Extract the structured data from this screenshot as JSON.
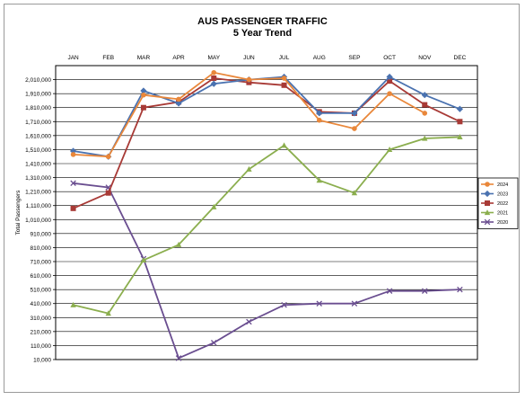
{
  "chart_data": {
    "type": "line",
    "title": "AUS PASSENGER TRAFFIC",
    "subtitle": "5 Year Trend",
    "ylabel": "Total Passengers",
    "xlabel": "",
    "categories": [
      "JAN",
      "FEB",
      "MAR",
      "APR",
      "MAY",
      "JUN",
      "JUL",
      "AUG",
      "SEP",
      "OCT",
      "NOV",
      "DEC"
    ],
    "ylim": [
      10000,
      2110000
    ],
    "yticks": [
      10000,
      110000,
      210000,
      310000,
      410000,
      510000,
      610000,
      710000,
      810000,
      910000,
      1010000,
      1110000,
      1210000,
      1310000,
      1410000,
      1510000,
      1610000,
      1710000,
      1810000,
      1910000,
      2010000
    ],
    "ytick_labels": [
      "10,000",
      "110,000",
      "210,000",
      "310,000",
      "410,000",
      "510,000",
      "610,000",
      "710,000",
      "810,000",
      "910,000",
      "1,010,000",
      "1,110,000",
      "1,210,000",
      "1,310,000",
      "1,410,000",
      "1,510,000",
      "1,610,000",
      "1,710,000",
      "1,810,000",
      "1,910,000",
      "2,010,000"
    ],
    "grid": "horizontal",
    "legend_position": "right",
    "series": [
      {
        "name": "2024",
        "color": "#e9873a",
        "marker": "circle",
        "values": [
          1475000,
          1460000,
          1900000,
          1870000,
          2060000,
          2010000,
          2020000,
          1720000,
          1660000,
          1910000,
          1770000,
          null
        ]
      },
      {
        "name": "2023",
        "color": "#4a72b0",
        "marker": "diamond",
        "values": [
          1500000,
          1460000,
          1930000,
          1840000,
          1980000,
          2010000,
          2030000,
          1770000,
          1770000,
          2030000,
          1900000,
          1800000
        ]
      },
      {
        "name": "2022",
        "color": "#a83a36",
        "marker": "square",
        "values": [
          1090000,
          1200000,
          1810000,
          1850000,
          2020000,
          1990000,
          1970000,
          1780000,
          1770000,
          2000000,
          1830000,
          1710000
        ]
      },
      {
        "name": "2021",
        "color": "#8bae4e",
        "marker": "triangle",
        "values": [
          400000,
          340000,
          720000,
          830000,
          1100000,
          1370000,
          1540000,
          1290000,
          1200000,
          1510000,
          1590000,
          1600000
        ]
      },
      {
        "name": "2020",
        "color": "#6a4e90",
        "marker": "x",
        "values": [
          1270000,
          1240000,
          730000,
          20000,
          130000,
          280000,
          400000,
          410000,
          410000,
          500000,
          500000,
          510000
        ]
      }
    ]
  }
}
